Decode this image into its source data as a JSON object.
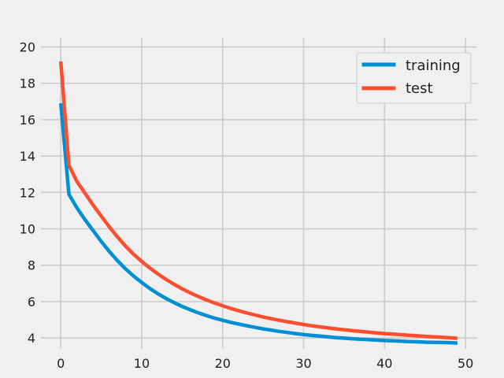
{
  "chart_data": {
    "type": "line",
    "title": "",
    "xlabel": "",
    "ylabel": "",
    "xlim": [
      -2.45,
      51.45
    ],
    "ylim": [
      3.4,
      20.5
    ],
    "xticks": [
      0,
      10,
      20,
      30,
      40,
      50
    ],
    "yticks": [
      4,
      6,
      8,
      10,
      12,
      14,
      16,
      18,
      20
    ],
    "grid": true,
    "legend_position": "top-right",
    "x": [
      0,
      1,
      2,
      3,
      4,
      5,
      6,
      7,
      8,
      9,
      10,
      11,
      12,
      13,
      14,
      15,
      16,
      17,
      18,
      19,
      20,
      21,
      22,
      23,
      24,
      25,
      26,
      27,
      28,
      29,
      30,
      31,
      32,
      33,
      34,
      35,
      36,
      37,
      38,
      39,
      40,
      41,
      42,
      43,
      44,
      45,
      46,
      47,
      48,
      49
    ],
    "series": [
      {
        "name": "training",
        "color": "#008fd5",
        "values": [
          16.9,
          11.9,
          11.15,
          10.5,
          9.9,
          9.3,
          8.75,
          8.25,
          7.8,
          7.4,
          7.05,
          6.72,
          6.43,
          6.17,
          5.94,
          5.73,
          5.55,
          5.38,
          5.23,
          5.09,
          4.97,
          4.86,
          4.76,
          4.67,
          4.58,
          4.5,
          4.43,
          4.36,
          4.3,
          4.24,
          4.19,
          4.14,
          4.1,
          4.06,
          4.02,
          3.99,
          3.96,
          3.93,
          3.91,
          3.88,
          3.86,
          3.84,
          3.82,
          3.8,
          3.79,
          3.77,
          3.76,
          3.75,
          3.74,
          3.72
        ]
      },
      {
        "name": "test",
        "color": "#fc4f30",
        "values": [
          19.2,
          13.5,
          12.6,
          11.95,
          11.3,
          10.7,
          10.1,
          9.55,
          9.05,
          8.6,
          8.2,
          7.85,
          7.52,
          7.22,
          6.95,
          6.7,
          6.48,
          6.28,
          6.09,
          5.92,
          5.77,
          5.62,
          5.49,
          5.37,
          5.26,
          5.15,
          5.06,
          4.97,
          4.89,
          4.81,
          4.74,
          4.67,
          4.61,
          4.55,
          4.5,
          4.45,
          4.4,
          4.36,
          4.32,
          4.28,
          4.24,
          4.21,
          4.18,
          4.15,
          4.12,
          4.09,
          4.06,
          4.04,
          4.01,
          3.98
        ]
      }
    ]
  }
}
